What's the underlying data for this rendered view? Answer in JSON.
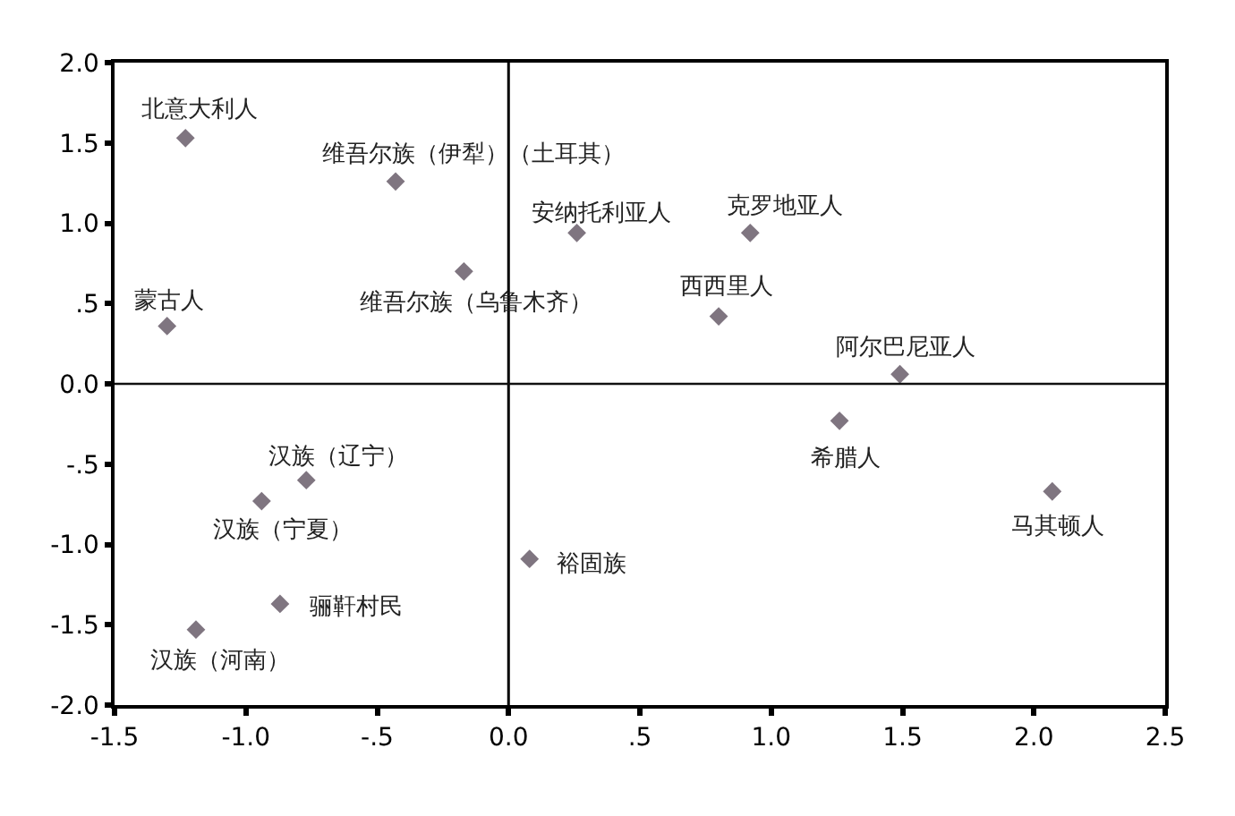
{
  "chart_data": {
    "type": "scatter",
    "x": [
      -1.23,
      -0.43,
      -0.17,
      -1.3,
      0.26,
      0.92,
      0.8,
      1.49,
      1.26,
      2.07,
      0.08,
      -0.77,
      -0.94,
      -0.87,
      -1.19
    ],
    "values": [
      1.53,
      1.26,
      0.7,
      0.36,
      0.94,
      0.94,
      0.42,
      0.06,
      -0.23,
      -0.67,
      -1.09,
      -0.6,
      -0.73,
      -1.37,
      -1.53
    ],
    "color": "#7f7580",
    "marker": "diamond",
    "annotations": [
      {
        "text": "北意大利人",
        "x": -1.23,
        "y": 1.53
      },
      {
        "text": "维吾尔族（伊犁）（土耳其）",
        "x": -0.43,
        "y": 1.26
      },
      {
        "text": "维吾尔族（乌鲁木齐）",
        "x": -0.17,
        "y": 0.7
      },
      {
        "text": "蒙古人",
        "x": -1.3,
        "y": 0.36
      },
      {
        "text": "安纳托利亚人",
        "x": 0.26,
        "y": 0.94
      },
      {
        "text": "克罗地亚人",
        "x": 0.92,
        "y": 0.94
      },
      {
        "text": "西西里人",
        "x": 0.8,
        "y": 0.42
      },
      {
        "text": "阿尔巴尼亚人",
        "x": 1.49,
        "y": 0.06
      },
      {
        "text": "希腊人",
        "x": 1.26,
        "y": -0.23
      },
      {
        "text": "马其顿人",
        "x": 2.07,
        "y": -0.67
      },
      {
        "text": "裕固族",
        "x": 0.08,
        "y": -1.09
      },
      {
        "text": "汉族（辽宁）",
        "x": -0.77,
        "y": -0.6
      },
      {
        "text": "汉族（宁夏）",
        "x": -0.94,
        "y": -0.73
      },
      {
        "text": "骊靬村民",
        "x": -0.87,
        "y": -1.37
      },
      {
        "text": "汉族（河南）",
        "x": -1.19,
        "y": -1.53
      }
    ],
    "xlim": [
      -1.5,
      2.5
    ],
    "xticks": [
      -1.5,
      {
        "value": -1,
        "label": "-1.0"
      },
      {
        "value": -0.5,
        "label": "-.5"
      },
      {
        "value": 0,
        "label": "0.0"
      },
      {
        "value": 0.5,
        "label": ".5"
      },
      {
        "value": 1,
        "label": "1.0"
      },
      1.5,
      {
        "value": 2,
        "label": "2.0"
      },
      2.5
    ],
    "ylim": [
      -2.0,
      2.0
    ],
    "yticks": [
      {
        "value": -2,
        "label": "-2.0"
      },
      -1.5,
      {
        "value": -1,
        "label": "-1.0"
      },
      {
        "value": -0.5,
        "label": "-.5"
      },
      {
        "value": 0,
        "label": "0.0"
      },
      {
        "value": 0.5,
        "label": ".5"
      },
      {
        "value": 1,
        "label": "1.0"
      },
      1.5,
      {
        "value": 2,
        "label": "2.0"
      }
    ],
    "ref_lines": [
      {
        "axis": "x",
        "value": 0.0
      },
      {
        "axis": "y",
        "value": 0.0
      }
    ]
  }
}
